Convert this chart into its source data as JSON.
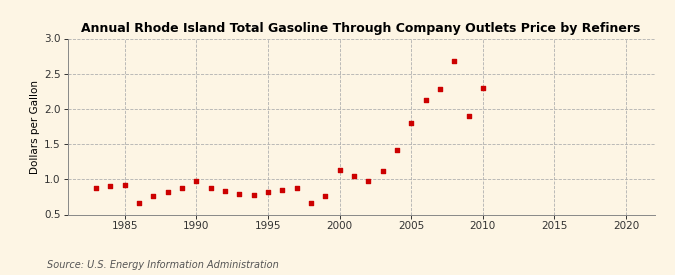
{
  "title": "Annual Rhode Island Total Gasoline Through Company Outlets Price by Refiners",
  "ylabel": "Dollars per Gallon",
  "source": "Source: U.S. Energy Information Administration",
  "background_color": "#fdf5e4",
  "plot_bg_color": "#fdf5e4",
  "data_color": "#cc0000",
  "xlim": [
    1981,
    2022
  ],
  "ylim": [
    0.5,
    3.0
  ],
  "xticks": [
    1985,
    1990,
    1995,
    2000,
    2005,
    2010,
    2015,
    2020
  ],
  "yticks": [
    0.5,
    1.0,
    1.5,
    2.0,
    2.5,
    3.0
  ],
  "years": [
    1983,
    1984,
    1985,
    1986,
    1987,
    1988,
    1989,
    1990,
    1991,
    1992,
    1993,
    1994,
    1995,
    1996,
    1997,
    1998,
    1999,
    2000,
    2001,
    2002,
    2003,
    2004,
    2005,
    2006,
    2007,
    2008,
    2009,
    2010
  ],
  "values": [
    0.88,
    0.9,
    0.92,
    0.66,
    0.76,
    0.82,
    0.87,
    0.97,
    0.87,
    0.83,
    0.79,
    0.77,
    0.82,
    0.85,
    0.87,
    0.66,
    0.76,
    1.13,
    1.05,
    0.97,
    1.12,
    1.41,
    1.8,
    2.13,
    2.28,
    2.68,
    1.9,
    2.29
  ]
}
